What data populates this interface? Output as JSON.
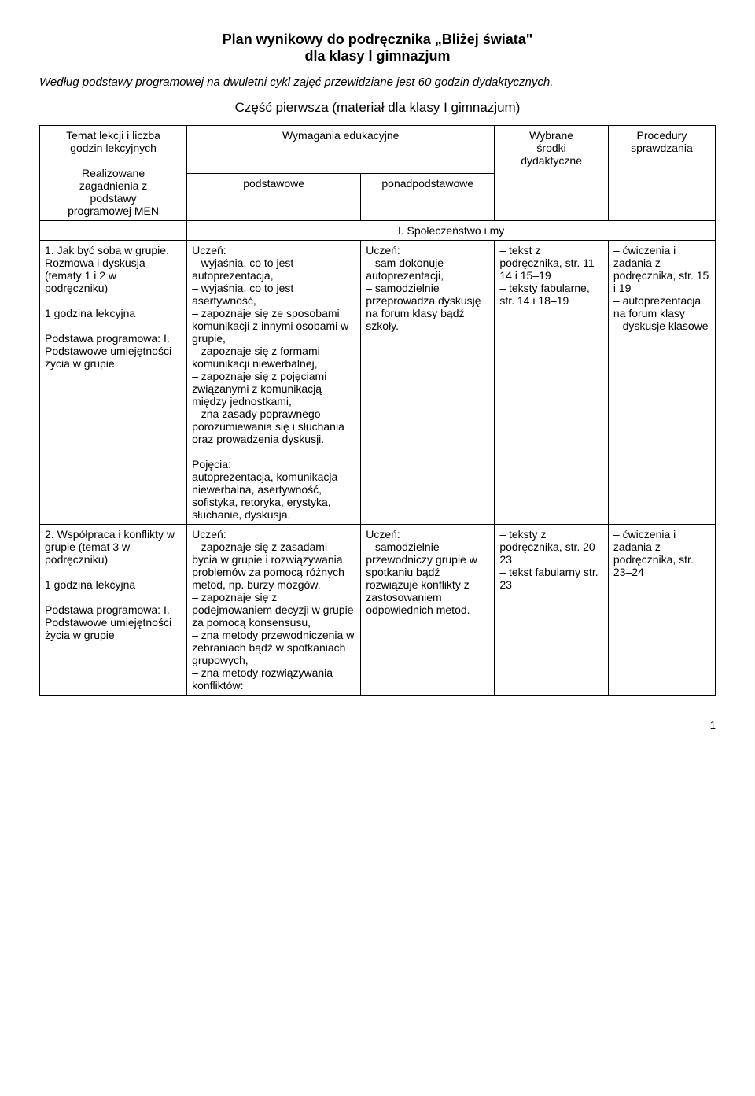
{
  "title": {
    "line1": "Plan wynikowy do podręcznika „Bliżej świata\"",
    "line2": "dla klasy I gimnazjum"
  },
  "intro": "Według podstawy programowej na dwuletni cykl zajęć przewidziane jest 60 godzin dydaktycznych.",
  "section_heading": "Część pierwsza (materiał dla klasy I gimnazjum)",
  "header": {
    "col1_l1": "Temat lekcji i liczba",
    "col1_l2": "godzin lekcyjnych",
    "col1_l3": "Realizowane",
    "col1_l4": "zagadnienia z",
    "col1_l5": "podstawy",
    "col1_l6": "programowej MEN",
    "col2": "Wymagania edukacyjne",
    "col2a": "podstawowe",
    "col2b": "ponadpodstawowe",
    "col3_l1": "Wybrane",
    "col3_l2": "środki",
    "col3_l3": "dydaktyczne",
    "col4_l1": "Procedury",
    "col4_l2": "sprawdzania"
  },
  "section_row": "I. Społeczeństwo i my",
  "row1": {
    "topic_p1": "1. Jak być sobą w grupie. Rozmowa i dyskusja",
    "topic_p2": "(tematy 1 i 2 w podręczniku)",
    "topic_p3": "1 godzina lekcyjna",
    "topic_p4": "Podstawa programowa: I. Podstawowe umiejętności życia w grupie",
    "basic_l1": "Uczeń:",
    "basic_body": "– wyjaśnia, co to jest autoprezentacja,\n– wyjaśnia, co to jest asertywność,\n– zapoznaje się ze sposobami komunikacji z innymi osobami w grupie,\n– zapoznaje się z formami komunikacji niewerbalnej,\n– zapoznaje się z pojęciami związanymi z komunikacją między jednostkami,\n– zna zasady poprawnego porozumiewania się i słuchania oraz prowadzenia dyskusji.",
    "basic_poj_h": "Pojęcia:",
    "basic_poj": "autoprezentacja, komunikacja niewerbalna, asertywność, sofistyka, retoryka, erystyka, słuchanie, dyskusja.",
    "above_l1": "Uczeń:",
    "above_body": "– sam dokonuje autoprezentacji,\n– samodzielnie przeprowadza dyskusję na forum klasy bądź szkoły.",
    "res": "– tekst z podręcznika, str. 11–14 i 15–19\n– teksty fabularne, str. 14 i 18–19",
    "proc": "– ćwiczenia i zadania z podręcznika, str. 15 i 19\n– autoprezentacja na forum klasy\n– dyskusje klasowe"
  },
  "row2": {
    "topic_p1": "2. Współpraca i konflikty w grupie (temat 3 w podręczniku)",
    "topic_p2": "1 godzina lekcyjna",
    "topic_p3": "Podstawa programowa: I. Podstawowe umiejętności życia w grupie",
    "basic_l1": "Uczeń:",
    "basic_body": "– zapoznaje się z zasadami bycia w grupie i rozwiązywania problemów za pomocą różnych metod, np. burzy mózgów,\n– zapoznaje się z podejmowaniem decyzji w grupie za pomocą konsensusu,\n– zna metody przewodniczenia w zebraniach bądź w spotkaniach grupowych,\n– zna metody rozwiązywania konfliktów:",
    "above_l1": "Uczeń:",
    "above_body": "– samodzielnie przewodniczy grupie w spotkaniu bądź rozwiązuje konflikty z zastosowaniem odpowiednich metod.",
    "res": "– teksty z podręcznika, str. 20–23\n– tekst fabularny str. 23",
    "proc": "– ćwiczenia i zadania z podręcznika, str. 23–24"
  },
  "page_number": "1"
}
